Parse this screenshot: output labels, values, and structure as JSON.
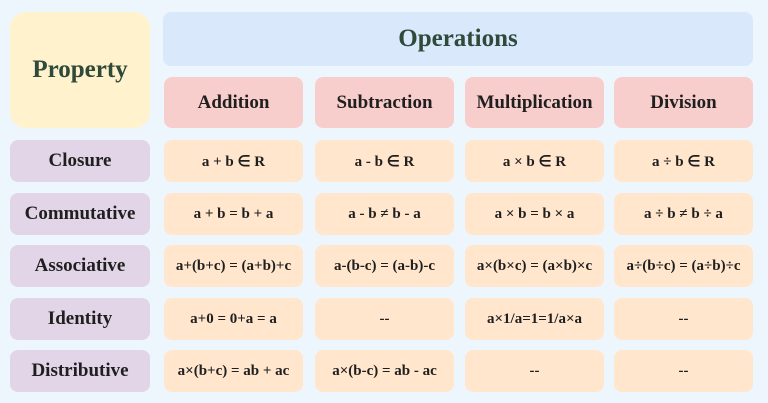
{
  "header": {
    "property": "Property",
    "operations": "Operations",
    "columns": [
      "Addition",
      "Subtraction",
      "Multiplication",
      "Division"
    ]
  },
  "rows": [
    {
      "label": "Closure",
      "cells": [
        "a + b ∈ R",
        "a - b ∈ R",
        "a × b ∈ R",
        "a ÷ b ∈ R"
      ]
    },
    {
      "label": "Commutative",
      "cells": [
        "a + b = b + a",
        "a - b ≠ b - a",
        "a × b = b × a",
        "a ÷ b ≠ b ÷ a"
      ]
    },
    {
      "label": "Associative",
      "cells": [
        "a+(b+c) = (a+b)+c",
        "a-(b-c) = (a-b)-c",
        "a×(b×c) = (a×b)×c",
        "a÷(b÷c) = (a÷b)÷c"
      ]
    },
    {
      "label": "Identity",
      "cells": [
        "a+0 = 0+a = a",
        "--",
        "a×1/a=1=1/a×a",
        "--"
      ]
    },
    {
      "label": "Distributive",
      "cells": [
        "a×(b+c) = ab + ac",
        "a×(b-c) = ab - ac",
        "--",
        "--"
      ]
    }
  ]
}
